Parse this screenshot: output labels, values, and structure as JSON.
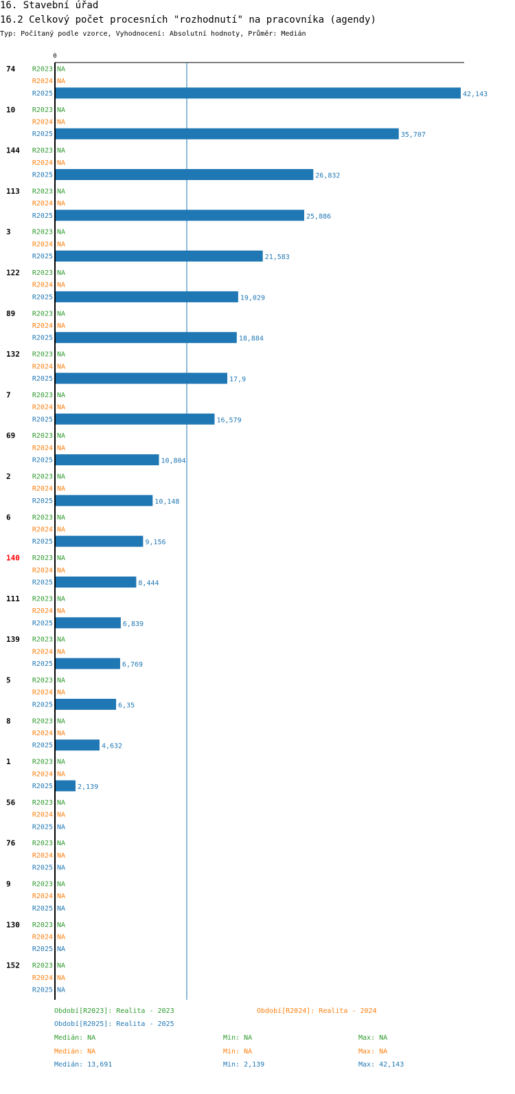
{
  "header": {
    "title": "16. Stavební úřad",
    "subtitle": "16.2 Celkový počet procesních \"rozhodnutí\" na pracovníka (agendy)",
    "meta": "Typ: Počítaný podle vzorce, Vyhodnocení: Absolutní hodnoty, Průměr: Medián"
  },
  "colors": {
    "r2023": "#2e9a2e",
    "r2024": "#ff7f0e",
    "r2025": "#1f77b4",
    "highlight": "#ff0000",
    "axis": "#000000"
  },
  "chart_data": {
    "type": "bar",
    "orientation": "horizontal",
    "axis_zero_label": "0",
    "x_max": 42143,
    "median_value": 13691,
    "series_names": [
      "R2023",
      "R2024",
      "R2025"
    ],
    "categories": [
      {
        "label": "74",
        "highlight": false,
        "values": [
          "NA",
          "NA",
          "42,143"
        ],
        "r2025": 42143
      },
      {
        "label": "10",
        "highlight": false,
        "values": [
          "NA",
          "NA",
          "35,707"
        ],
        "r2025": 35707
      },
      {
        "label": "144",
        "highlight": false,
        "values": [
          "NA",
          "NA",
          "26,832"
        ],
        "r2025": 26832
      },
      {
        "label": "113",
        "highlight": false,
        "values": [
          "NA",
          "NA",
          "25,886"
        ],
        "r2025": 25886
      },
      {
        "label": "3",
        "highlight": false,
        "values": [
          "NA",
          "NA",
          "21,583"
        ],
        "r2025": 21583
      },
      {
        "label": "122",
        "highlight": false,
        "values": [
          "NA",
          "NA",
          "19,029"
        ],
        "r2025": 19029
      },
      {
        "label": "89",
        "highlight": false,
        "values": [
          "NA",
          "NA",
          "18,884"
        ],
        "r2025": 18884
      },
      {
        "label": "132",
        "highlight": false,
        "values": [
          "NA",
          "NA",
          "17,9"
        ],
        "r2025": 17900
      },
      {
        "label": "7",
        "highlight": false,
        "values": [
          "NA",
          "NA",
          "16,579"
        ],
        "r2025": 16579
      },
      {
        "label": "69",
        "highlight": false,
        "values": [
          "NA",
          "NA",
          "10,804"
        ],
        "r2025": 10804
      },
      {
        "label": "2",
        "highlight": false,
        "values": [
          "NA",
          "NA",
          "10,148"
        ],
        "r2025": 10148
      },
      {
        "label": "6",
        "highlight": false,
        "values": [
          "NA",
          "NA",
          "9,156"
        ],
        "r2025": 9156
      },
      {
        "label": "140",
        "highlight": true,
        "values": [
          "NA",
          "NA",
          "8,444"
        ],
        "r2025": 8444
      },
      {
        "label": "111",
        "highlight": false,
        "values": [
          "NA",
          "NA",
          "6,839"
        ],
        "r2025": 6839
      },
      {
        "label": "139",
        "highlight": false,
        "values": [
          "NA",
          "NA",
          "6,769"
        ],
        "r2025": 6769
      },
      {
        "label": "5",
        "highlight": false,
        "values": [
          "NA",
          "NA",
          "6,35"
        ],
        "r2025": 6350
      },
      {
        "label": "8",
        "highlight": false,
        "values": [
          "NA",
          "NA",
          "4,632"
        ],
        "r2025": 4632
      },
      {
        "label": "1",
        "highlight": false,
        "values": [
          "NA",
          "NA",
          "2,139"
        ],
        "r2025": 2139
      },
      {
        "label": "56",
        "highlight": false,
        "values": [
          "NA",
          "NA",
          "NA"
        ],
        "r2025": null
      },
      {
        "label": "76",
        "highlight": false,
        "values": [
          "NA",
          "NA",
          "NA"
        ],
        "r2025": null
      },
      {
        "label": "9",
        "highlight": false,
        "values": [
          "NA",
          "NA",
          "NA"
        ],
        "r2025": null
      },
      {
        "label": "130",
        "highlight": false,
        "values": [
          "NA",
          "NA",
          "NA"
        ],
        "r2025": null
      },
      {
        "label": "152",
        "highlight": false,
        "values": [
          "NA",
          "NA",
          "NA"
        ],
        "r2025": null
      }
    ]
  },
  "legend": {
    "period_2023": "Období[R2023]: Realita - 2023",
    "period_2024": "Období[R2024]: Realita - 2024",
    "period_2025": "Období[R2025]: Realita - 2025",
    "stats": [
      {
        "median": "Medián: NA",
        "min": "Min: NA",
        "max": "Max: NA"
      },
      {
        "median": "Medián: NA",
        "min": "Min: NA",
        "max": "Max: NA"
      },
      {
        "median": "Medián: 13,691",
        "min": "Min: 2,139",
        "max": "Max: 42,143"
      }
    ]
  }
}
